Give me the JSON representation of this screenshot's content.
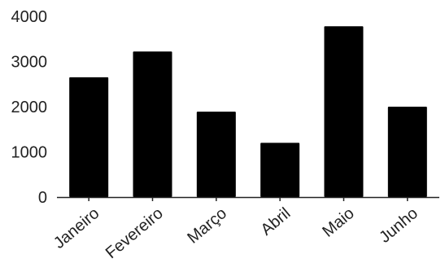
{
  "chart_data": {
    "type": "bar",
    "categories": [
      "Janeiro",
      "Fevereiro",
      "Março",
      "Abril",
      "Maio",
      "Junho"
    ],
    "values": [
      2650,
      3220,
      1890,
      1200,
      3780,
      2000
    ],
    "ylim": [
      0,
      4000
    ],
    "yticks": [
      0,
      1000,
      2000,
      3000,
      4000
    ],
    "grid": false,
    "bar_color": "#000000",
    "axis_color": "#222222",
    "text_color": "#222222"
  }
}
